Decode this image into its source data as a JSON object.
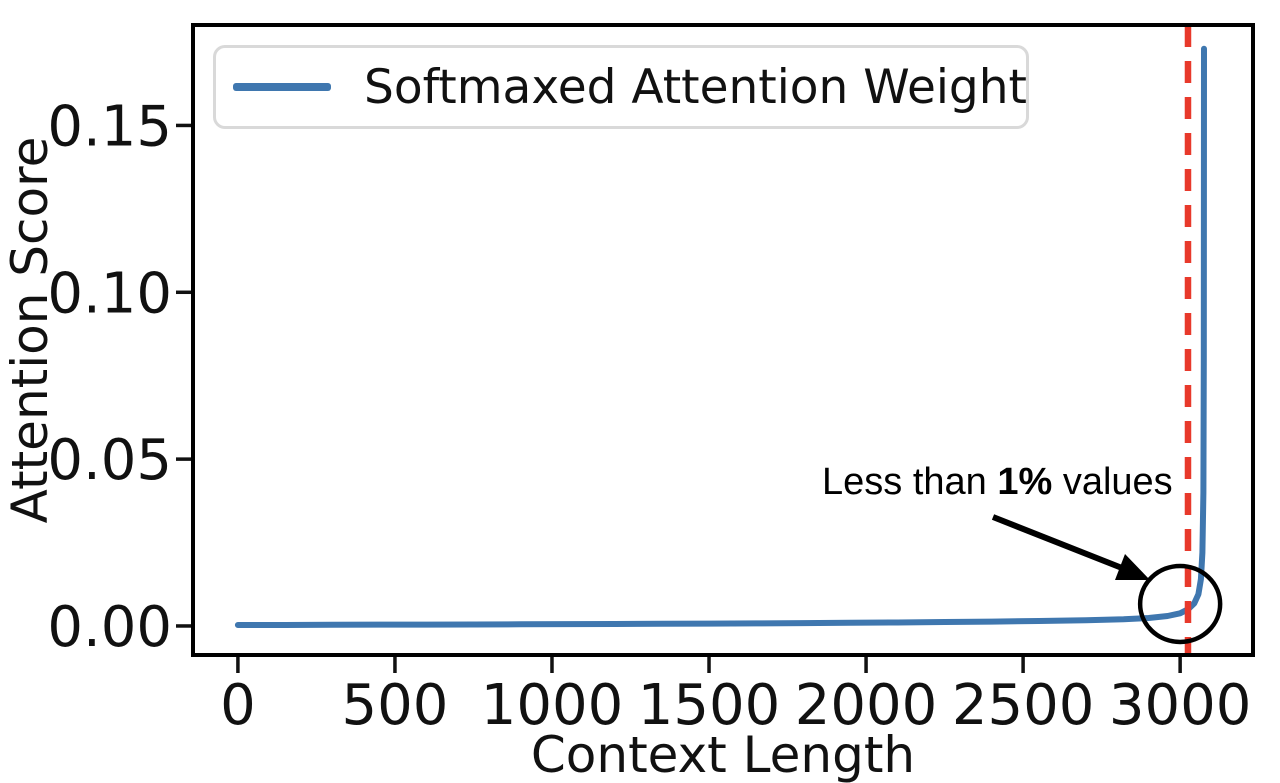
{
  "chart_data": {
    "type": "line",
    "title": "",
    "xlabel": "Context Length",
    "ylabel": "Attention Score",
    "xlim": [
      -143,
      3232
    ],
    "ylim": [
      -0.0087,
      0.1801
    ],
    "x_ticks": [
      0,
      500,
      1000,
      1500,
      2000,
      2500,
      3000
    ],
    "x_tick_labels": [
      "0",
      "500",
      "1000",
      "1500",
      "2000",
      "2500",
      "3000"
    ],
    "y_ticks": [
      0.0,
      0.05,
      0.1,
      0.15
    ],
    "y_tick_labels": [
      "0.00",
      "0.05",
      "0.10",
      "0.15"
    ],
    "grid": false,
    "legend": {
      "position": "upper left",
      "entries": [
        {
          "label": "Softmaxed Attention Weight",
          "color": "#3f77af"
        }
      ]
    },
    "series": [
      {
        "name": "Softmaxed Attention Weight",
        "color": "#3f77af",
        "line_width": 6,
        "points": [
          [
            0,
            0.0003
          ],
          [
            150,
            0.0003
          ],
          [
            300,
            0.00035
          ],
          [
            450,
            0.0004
          ],
          [
            600,
            0.00042
          ],
          [
            750,
            0.00045
          ],
          [
            900,
            0.0005
          ],
          [
            1050,
            0.00055
          ],
          [
            1200,
            0.0006
          ],
          [
            1350,
            0.00065
          ],
          [
            1500,
            0.0007
          ],
          [
            1650,
            0.00078
          ],
          [
            1800,
            0.00086
          ],
          [
            1950,
            0.00095
          ],
          [
            2100,
            0.00105
          ],
          [
            2250,
            0.00118
          ],
          [
            2400,
            0.00132
          ],
          [
            2550,
            0.0015
          ],
          [
            2700,
            0.0017
          ],
          [
            2820,
            0.002
          ],
          [
            2900,
            0.0024
          ],
          [
            2960,
            0.003
          ],
          [
            3000,
            0.0038
          ],
          [
            3025,
            0.005
          ],
          [
            3045,
            0.0068
          ],
          [
            3058,
            0.0095
          ],
          [
            3066,
            0.014
          ],
          [
            3071,
            0.022
          ],
          [
            3074,
            0.04
          ],
          [
            3075.5,
            0.08
          ],
          [
            3076,
            0.173
          ]
        ]
      }
    ],
    "vline": {
      "x": 3025,
      "color": "#e8392b",
      "style": "dashed",
      "width": 6.5
    },
    "annotation": {
      "text_prefix": "Less than ",
      "text_bold": "1%",
      "text_suffix": " values",
      "target": "elbow of curve near x=3000",
      "circle_center_x": 3000,
      "circle_center_y": 0.0066
    },
    "spine_color": "#000000",
    "tick_color": "#111111"
  }
}
